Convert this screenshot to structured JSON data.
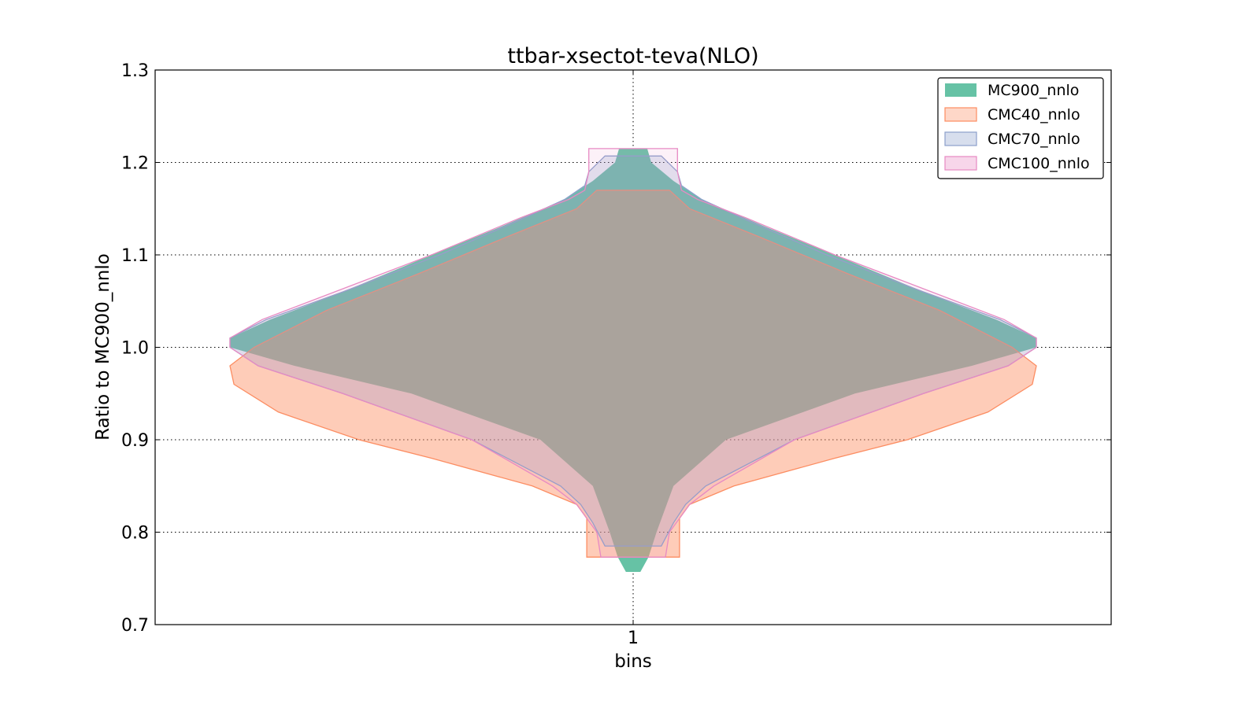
{
  "chart_data": {
    "type": "violin",
    "title": "ttbar-xsectot-teva(NLO)",
    "xlabel": "bins",
    "ylabel": "Ratio to MC900_nnlo",
    "categories": [
      "1"
    ],
    "ylim": [
      0.7,
      1.3
    ],
    "yticks": [
      "0.7",
      "0.8",
      "0.9",
      "1.0",
      "1.1",
      "1.2",
      "1.3"
    ],
    "grid": true,
    "legend_position": "top-right",
    "series": [
      {
        "name": "MC900_nnlo",
        "color": "#66c2a5",
        "profile": [
          [
            0.757,
            0.018
          ],
          [
            0.773,
            0.038
          ],
          [
            0.8,
            0.058
          ],
          [
            0.85,
            0.1
          ],
          [
            0.9,
            0.23
          ],
          [
            0.95,
            0.55
          ],
          [
            0.98,
            0.84
          ],
          [
            1.0,
            1.0
          ],
          [
            1.01,
            1.0
          ],
          [
            1.03,
            0.9
          ],
          [
            1.06,
            0.72
          ],
          [
            1.1,
            0.5
          ],
          [
            1.13,
            0.33
          ],
          [
            1.16,
            0.17
          ],
          [
            1.18,
            0.1
          ],
          [
            1.2,
            0.045
          ],
          [
            1.215,
            0.035
          ]
        ]
      },
      {
        "name": "CMC40_nnlo",
        "color": "#fc8d62",
        "profile": [
          [
            0.773,
            0.115
          ],
          [
            0.8,
            0.115
          ],
          [
            0.815,
            0.115
          ],
          [
            0.83,
            0.14
          ],
          [
            0.85,
            0.25
          ],
          [
            0.88,
            0.5
          ],
          [
            0.9,
            0.68
          ],
          [
            0.93,
            0.88
          ],
          [
            0.96,
            0.99
          ],
          [
            0.98,
            1.0
          ],
          [
            1.0,
            0.94
          ],
          [
            1.04,
            0.76
          ],
          [
            1.08,
            0.53
          ],
          [
            1.12,
            0.31
          ],
          [
            1.15,
            0.14
          ],
          [
            1.17,
            0.09
          ]
        ]
      },
      {
        "name": "CMC70_nnlo",
        "color": "#8da0cb",
        "profile": [
          [
            0.785,
            0.07
          ],
          [
            0.81,
            0.1
          ],
          [
            0.83,
            0.13
          ],
          [
            0.85,
            0.18
          ],
          [
            0.9,
            0.4
          ],
          [
            0.95,
            0.72
          ],
          [
            0.98,
            0.93
          ],
          [
            1.0,
            1.0
          ],
          [
            1.01,
            1.0
          ],
          [
            1.03,
            0.91
          ],
          [
            1.06,
            0.72
          ],
          [
            1.1,
            0.48
          ],
          [
            1.14,
            0.27
          ],
          [
            1.16,
            0.17
          ],
          [
            1.175,
            0.12
          ],
          [
            1.19,
            0.11
          ],
          [
            1.207,
            0.07
          ]
        ]
      },
      {
        "name": "CMC100_nnlo",
        "color": "#e78ac3",
        "profile": [
          [
            0.773,
            0.08
          ],
          [
            0.8,
            0.09
          ],
          [
            0.83,
            0.14
          ],
          [
            0.85,
            0.2
          ],
          [
            0.9,
            0.4
          ],
          [
            0.95,
            0.72
          ],
          [
            0.98,
            0.93
          ],
          [
            1.0,
            1.0
          ],
          [
            1.01,
            1.0
          ],
          [
            1.03,
            0.92
          ],
          [
            1.06,
            0.74
          ],
          [
            1.1,
            0.5
          ],
          [
            1.14,
            0.28
          ],
          [
            1.16,
            0.16
          ],
          [
            1.17,
            0.12
          ],
          [
            1.19,
            0.11
          ],
          [
            1.215,
            0.11
          ]
        ]
      }
    ]
  }
}
